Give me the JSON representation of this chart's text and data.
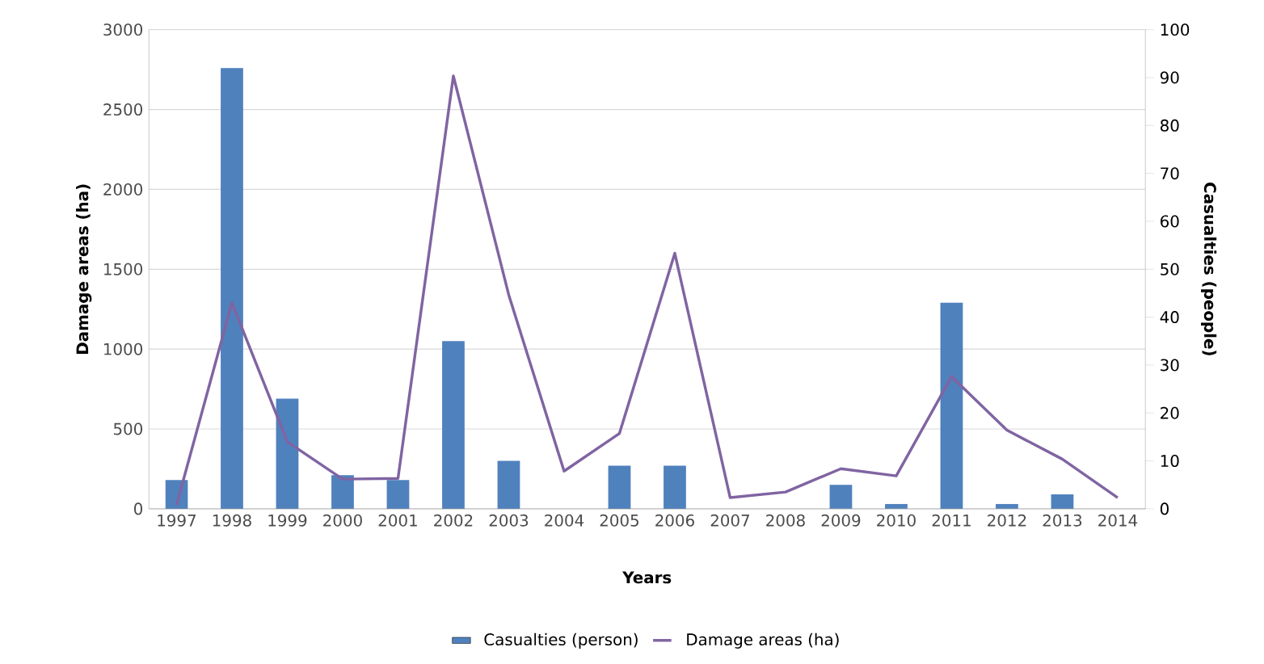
{
  "chart_data": {
    "type": "bar",
    "xlabel": "Years",
    "ylabel": "Damage areas (ha)",
    "y2label": "Casualties (people)",
    "categories": [
      "1997",
      "1998",
      "1999",
      "2000",
      "2001",
      "2002",
      "2003",
      "2004",
      "2005",
      "2006",
      "2007",
      "2008",
      "2009",
      "2010",
      "2011",
      "2012",
      "2013",
      "2014"
    ],
    "series": [
      {
        "name": "Casualties (person)",
        "axis": "y2",
        "color": "#4f81bd",
        "values": [
          6,
          92,
          23,
          7,
          6,
          35,
          10,
          0,
          9,
          9,
          0,
          0,
          5,
          1,
          43,
          1,
          3,
          0
        ]
      },
      {
        "name": "Damage areas (ha)",
        "type": "line",
        "color": "#8064a2",
        "values": [
          25,
          1290,
          420,
          186,
          190,
          2710,
          1340,
          236,
          472,
          1600,
          70,
          105,
          251,
          206,
          828,
          492,
          311,
          70
        ]
      }
    ],
    "ylim": [
      0,
      3000
    ],
    "yticks": [
      0,
      500,
      1000,
      1500,
      2000,
      2500,
      3000
    ],
    "y2lim": [
      0,
      100
    ],
    "y2ticks": [
      0,
      10,
      20,
      30,
      40,
      50,
      60,
      70,
      80,
      90,
      100
    ],
    "grid": "y",
    "legend": "bottom"
  }
}
